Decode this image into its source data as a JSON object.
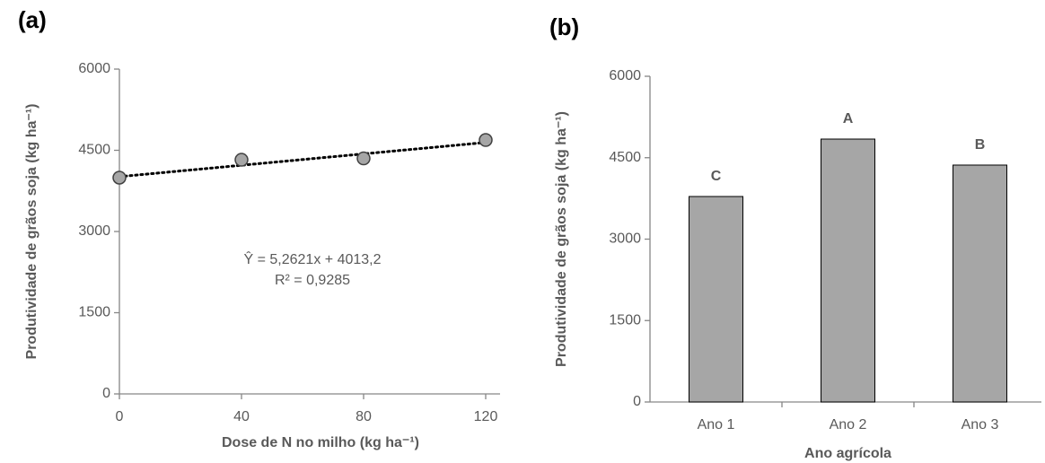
{
  "chart_data": [
    {
      "type": "scatter",
      "panel": "(a)",
      "x_label": "Dose de N no milho (kg ha⁻¹)",
      "y_label": "Produtividade de grãos soja (kg ha⁻¹)",
      "x": [
        0,
        40,
        80,
        120
      ],
      "values": [
        3995,
        4325,
        4350,
        4690
      ],
      "color": "#a6a6a6",
      "trendline": {
        "slope": 5.2621,
        "intercept": 4013.2,
        "label": "Ŷ = 5,2621x + 4013,2"
      },
      "r2_label": "R² = 0,9285",
      "xlim": [
        0,
        120
      ],
      "xticks": [
        0,
        40,
        80,
        120
      ],
      "ylim": [
        0,
        6000
      ],
      "yticks": [
        0,
        1500,
        3000,
        4500,
        6000
      ]
    },
    {
      "type": "bar",
      "panel": "(b)",
      "x_label": "Ano agrícola",
      "y_label": "Produtividade de grãos soja (kg ha⁻¹)",
      "categories": [
        "Ano 1",
        "Ano 2",
        "Ano 3"
      ],
      "values": [
        3785,
        4843,
        4364
      ],
      "letters": [
        "C",
        "A",
        "B"
      ],
      "color": "#a6a6a6",
      "ylim": [
        0,
        6000
      ],
      "yticks": [
        0,
        1500,
        3000,
        4500,
        6000
      ]
    }
  ]
}
